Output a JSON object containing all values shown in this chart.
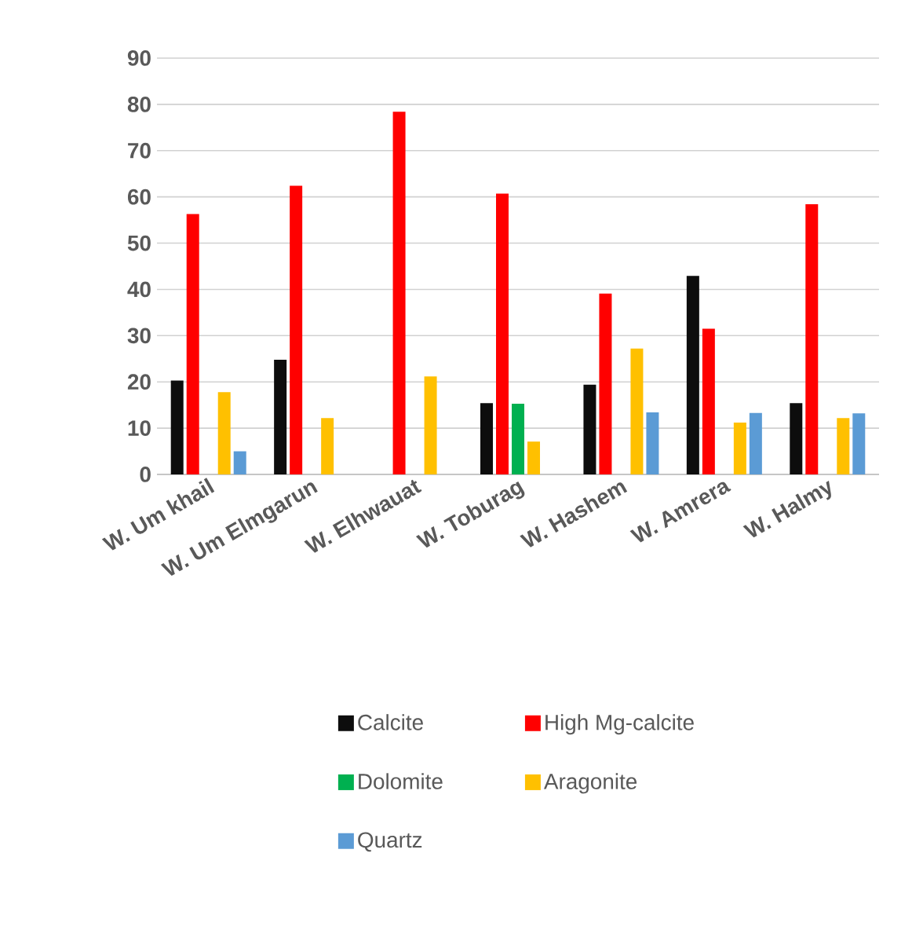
{
  "chart_data": {
    "type": "bar",
    "categories": [
      "W. Um khail",
      "W. Um Elmgarun",
      "W. Elhwauat",
      "W. Toburag",
      "W. Hashem",
      "W. Amrera",
      "W. Halmy"
    ],
    "series": [
      {
        "name": "Calcite",
        "color": "#0d0d0d",
        "values": [
          20.3,
          24.8,
          null,
          15.4,
          19.4,
          42.9,
          15.4
        ]
      },
      {
        "name": "High Mg-calcite",
        "color": "#ff0000",
        "values": [
          56.3,
          62.4,
          78.4,
          60.7,
          39.1,
          31.5,
          58.4
        ]
      },
      {
        "name": "Dolomite",
        "color": "#00b050",
        "values": [
          null,
          null,
          null,
          15.3,
          null,
          null,
          null
        ]
      },
      {
        "name": "Aragonite",
        "color": "#ffc000",
        "values": [
          17.8,
          12.2,
          21.2,
          7.1,
          27.2,
          11.2,
          12.2
        ]
      },
      {
        "name": "Quartz",
        "color": "#5b9bd5",
        "values": [
          5.0,
          null,
          null,
          null,
          13.4,
          13.3,
          13.2
        ]
      }
    ],
    "ylim": [
      0,
      90
    ],
    "yticks": [
      0,
      10,
      20,
      30,
      40,
      50,
      60,
      70,
      80,
      90
    ],
    "grid": "y",
    "legend": "bottom"
  }
}
